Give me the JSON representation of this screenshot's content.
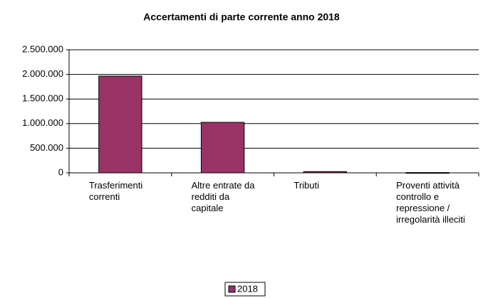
{
  "chart_data": {
    "type": "bar",
    "title": "Accertamenti di parte corrente anno 2018",
    "categories": [
      "Trasferimenti correnti",
      "Altre entrate da redditi da capitale",
      "Tributi",
      "Proventi attività controllo e repressione / irregolarità illeciti"
    ],
    "series": [
      {
        "name": "2018",
        "color": "#993366",
        "values": [
          1965000,
          1026000,
          25000,
          5000
        ]
      }
    ],
    "ylim": [
      0,
      2500000
    ],
    "yticks": [
      0,
      {
        "value": 500000,
        "label": "500.000"
      },
      {
        "value": 1000000,
        "label": "1.000.000"
      },
      {
        "value": 1500000,
        "label": "1.500.000"
      },
      {
        "value": 2000000,
        "label": "2.000.000"
      },
      {
        "value": 2500000,
        "label": "2.500.000"
      }
    ],
    "grid": true,
    "legend": "bottom"
  }
}
